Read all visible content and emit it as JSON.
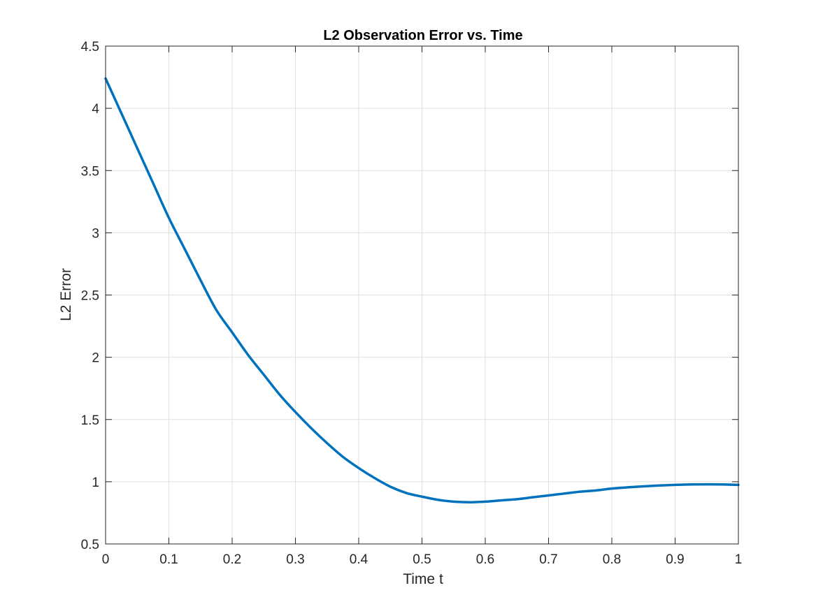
{
  "chart_data": {
    "type": "line",
    "title": "L2 Observation Error vs. Time",
    "xlabel": "Time t",
    "ylabel": "L2 Error",
    "xlim": [
      0,
      1
    ],
    "ylim": [
      0.5,
      4.5
    ],
    "xticks": [
      0,
      0.1,
      0.2,
      0.3,
      0.4,
      0.5,
      0.6,
      0.7,
      0.8,
      0.9,
      1
    ],
    "yticks": [
      0.5,
      1,
      1.5,
      2,
      2.5,
      3,
      3.5,
      4,
      4.5
    ],
    "xtick_labels": [
      "0",
      "0.1",
      "0.2",
      "0.3",
      "0.4",
      "0.5",
      "0.6",
      "0.7",
      "0.8",
      "0.9",
      "1"
    ],
    "ytick_labels": [
      "0.5",
      "1",
      "1.5",
      "2",
      "2.5",
      "3",
      "3.5",
      "4",
      "4.5"
    ],
    "grid": true,
    "box": true,
    "series": [
      {
        "color": "#0072BD",
        "x": [
          0,
          0.025,
          0.05,
          0.075,
          0.1,
          0.125,
          0.15,
          0.175,
          0.2,
          0.225,
          0.25,
          0.275,
          0.3,
          0.325,
          0.35,
          0.375,
          0.4,
          0.425,
          0.45,
          0.475,
          0.5,
          0.525,
          0.55,
          0.575,
          0.6,
          0.625,
          0.65,
          0.675,
          0.7,
          0.725,
          0.75,
          0.775,
          0.8,
          0.825,
          0.85,
          0.875,
          0.9,
          0.925,
          0.95,
          0.975,
          1
        ],
        "y": [
          4.24,
          3.96,
          3.68,
          3.4,
          3.12,
          2.87,
          2.62,
          2.38,
          2.2,
          2.02,
          1.86,
          1.7,
          1.56,
          1.43,
          1.31,
          1.2,
          1.11,
          1.03,
          0.96,
          0.91,
          0.88,
          0.855,
          0.84,
          0.835,
          0.84,
          0.85,
          0.86,
          0.875,
          0.89,
          0.905,
          0.92,
          0.93,
          0.945,
          0.955,
          0.963,
          0.97,
          0.975,
          0.978,
          0.979,
          0.978,
          0.975
        ]
      }
    ]
  }
}
